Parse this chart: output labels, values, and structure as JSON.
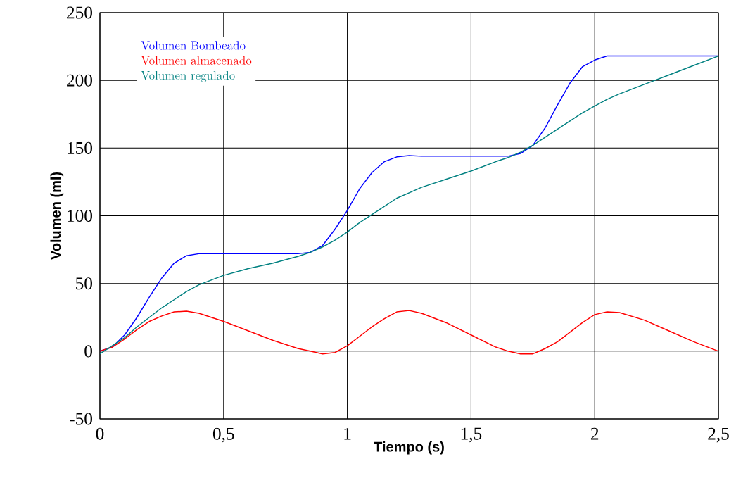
{
  "chart_data": {
    "type": "line",
    "xlabel": "Tiempo (s)",
    "ylabel": "Volumen (ml)",
    "xlim": [
      0,
      2.5
    ],
    "ylim": [
      -50,
      250
    ],
    "xticks": [
      0,
      {
        "value": 0.5,
        "label": "0,5"
      },
      1,
      {
        "value": 1.5,
        "label": "1,5"
      },
      2,
      {
        "value": 2.5,
        "label": "2,5"
      }
    ],
    "yticks": [
      -50,
      0,
      50,
      100,
      150,
      200,
      250
    ],
    "grid": true,
    "legend": "top left",
    "line_style": "solid",
    "marker": "none",
    "x": [
      0,
      0.05,
      0.1,
      0.15,
      0.2,
      0.25,
      0.3,
      0.35,
      0.4,
      0.5,
      0.6,
      0.7,
      0.8,
      0.85,
      0.9,
      0.95,
      1.0,
      1.05,
      1.1,
      1.15,
      1.2,
      1.25,
      1.3,
      1.4,
      1.5,
      1.6,
      1.65,
      1.7,
      1.75,
      1.8,
      1.85,
      1.9,
      1.95,
      2.0,
      2.05,
      2.1,
      2.2,
      2.3,
      2.4,
      2.5
    ],
    "series": [
      {
        "name": "Volumen Bombeado",
        "color": "#0000ff",
        "values": [
          0,
          3,
          12,
          25,
          40,
          54,
          65,
          70.5,
          72,
          72,
          72,
          72,
          72,
          73,
          78,
          90,
          104,
          120,
          132,
          140,
          143.5,
          144.5,
          144,
          144,
          144,
          144,
          144,
          146,
          152,
          165,
          182,
          198,
          210,
          215,
          218,
          218,
          218,
          218,
          218,
          218
        ]
      },
      {
        "name": "Volumen almacenado",
        "color": "#ff0000",
        "values": [
          0,
          3,
          9,
          16,
          22,
          26,
          29,
          29.5,
          28,
          22,
          15,
          8,
          2,
          0,
          -2,
          -1,
          4,
          11,
          18,
          24,
          29,
          30,
          28,
          21,
          12,
          3,
          0,
          -2,
          -2,
          2,
          7,
          14,
          21,
          27,
          29,
          28.5,
          23,
          15,
          7,
          0
        ]
      },
      {
        "name": "Volumen regulado",
        "color": "#008080",
        "values": [
          -2,
          4,
          10,
          18,
          25,
          32,
          38,
          44,
          49,
          56,
          61,
          65,
          70,
          73,
          77,
          82,
          88,
          95,
          101,
          107,
          113,
          117,
          121,
          127,
          133,
          140,
          143,
          147,
          152,
          158,
          164,
          170,
          176,
          181,
          186,
          190,
          197,
          204,
          211,
          218
        ]
      }
    ]
  }
}
